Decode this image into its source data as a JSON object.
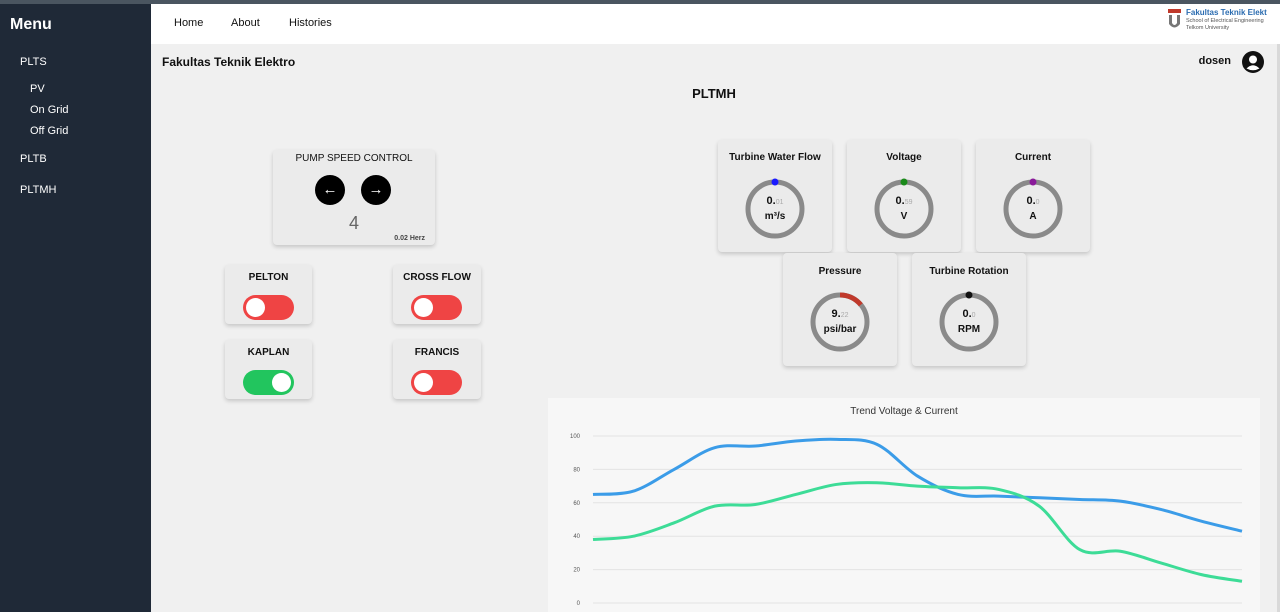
{
  "sidebar": {
    "title": "Menu",
    "items": [
      {
        "label": "PLTS"
      },
      {
        "label": "PV"
      },
      {
        "label": "On Grid"
      },
      {
        "label": "Off Grid"
      },
      {
        "label": "PLTB"
      },
      {
        "label": "PLTMH"
      }
    ]
  },
  "topnav": {
    "home": "Home",
    "about": "About",
    "histories": "Histories"
  },
  "logo": {
    "line1": "Fakultas Teknik Elekt",
    "line2": "School of Electrical Engineering",
    "line3": "Telkom University"
  },
  "header": {
    "faculty": "Fakultas Teknik Elektro",
    "user": "dosen"
  },
  "page": {
    "title": "PLTMH"
  },
  "pump": {
    "title": "PUMP SPEED CONTROL",
    "left_arrow": "←",
    "right_arrow": "→",
    "value": "4",
    "frequency": "0.02 Herz"
  },
  "turbines": [
    {
      "label": "PELTON",
      "on": false
    },
    {
      "label": "CROSS FLOW",
      "on": false
    },
    {
      "label": "KAPLAN",
      "on": true
    },
    {
      "label": "FRANCIS",
      "on": false
    }
  ],
  "colors": {
    "toggle_on": "#22c55e",
    "toggle_off": "#ef4444",
    "sidebar": "#1f2937",
    "voltage_line": "#3b9ce8",
    "current_line": "#3ddc97",
    "gauge_track": "#8a8a8a"
  },
  "gauges": [
    {
      "label": "Turbine Water Flow",
      "int": "0.",
      "dec": "01",
      "unit": "m³/s",
      "color": "#1a1aff",
      "fraction": 0.0
    },
    {
      "label": "Voltage",
      "int": "0.",
      "dec": "59",
      "unit": "V",
      "color": "#1a8a1a",
      "fraction": 0.0
    },
    {
      "label": "Current",
      "int": "0.",
      "dec": "0",
      "unit": "A",
      "color": "#8a1a9a",
      "fraction": 0.0
    },
    {
      "label": "Pressure",
      "int": "9.",
      "dec": "22",
      "unit": "psi/bar",
      "color": "#c0392b",
      "fraction": 0.14
    },
    {
      "label": "Turbine Rotation",
      "int": "0.",
      "dec": "0",
      "unit": "RPM",
      "color": "#111111",
      "fraction": 0.0
    }
  ],
  "chart_data": {
    "type": "line",
    "title": "Trend Voltage & Current",
    "ylim": [
      0,
      100
    ],
    "yticks": [
      0,
      20,
      40,
      60,
      80,
      100
    ],
    "grid": true,
    "series": [
      {
        "values": [
          65,
          67,
          80,
          93,
          94,
          97,
          98,
          95,
          76,
          65,
          64,
          63,
          62,
          61,
          56,
          49,
          43
        ]
      },
      {
        "values": [
          38,
          40,
          48,
          58,
          59,
          65,
          71,
          72,
          70,
          69,
          68,
          58,
          32,
          31,
          24,
          17,
          13
        ]
      }
    ]
  }
}
